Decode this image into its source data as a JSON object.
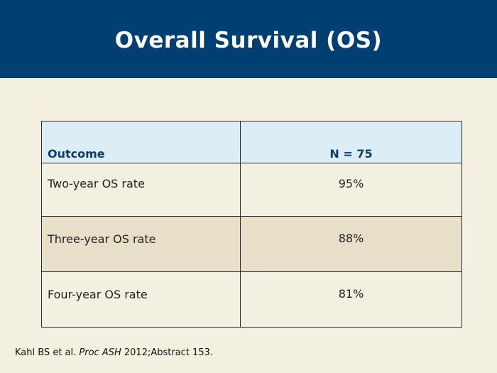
{
  "header": {
    "title": "Overall Survival (OS)"
  },
  "table": {
    "columns": [
      "Outcome",
      "N = 75"
    ],
    "rows": [
      {
        "outcome": "Two-year OS rate",
        "value": "95%"
      },
      {
        "outcome": "Three-year OS rate",
        "value": "88%"
      },
      {
        "outcome": "Four-year OS rate",
        "value": "81%"
      }
    ]
  },
  "citation": {
    "authors": "Kahl BS et al.",
    "journal": "Proc ASH",
    "details": "2012;Abstract 153."
  },
  "colors": {
    "header_bg": "#003f72",
    "page_bg": "#f3efe1",
    "table_header_bg": "#dcedf6",
    "shaded_row_bg": "#e7dfc8"
  }
}
